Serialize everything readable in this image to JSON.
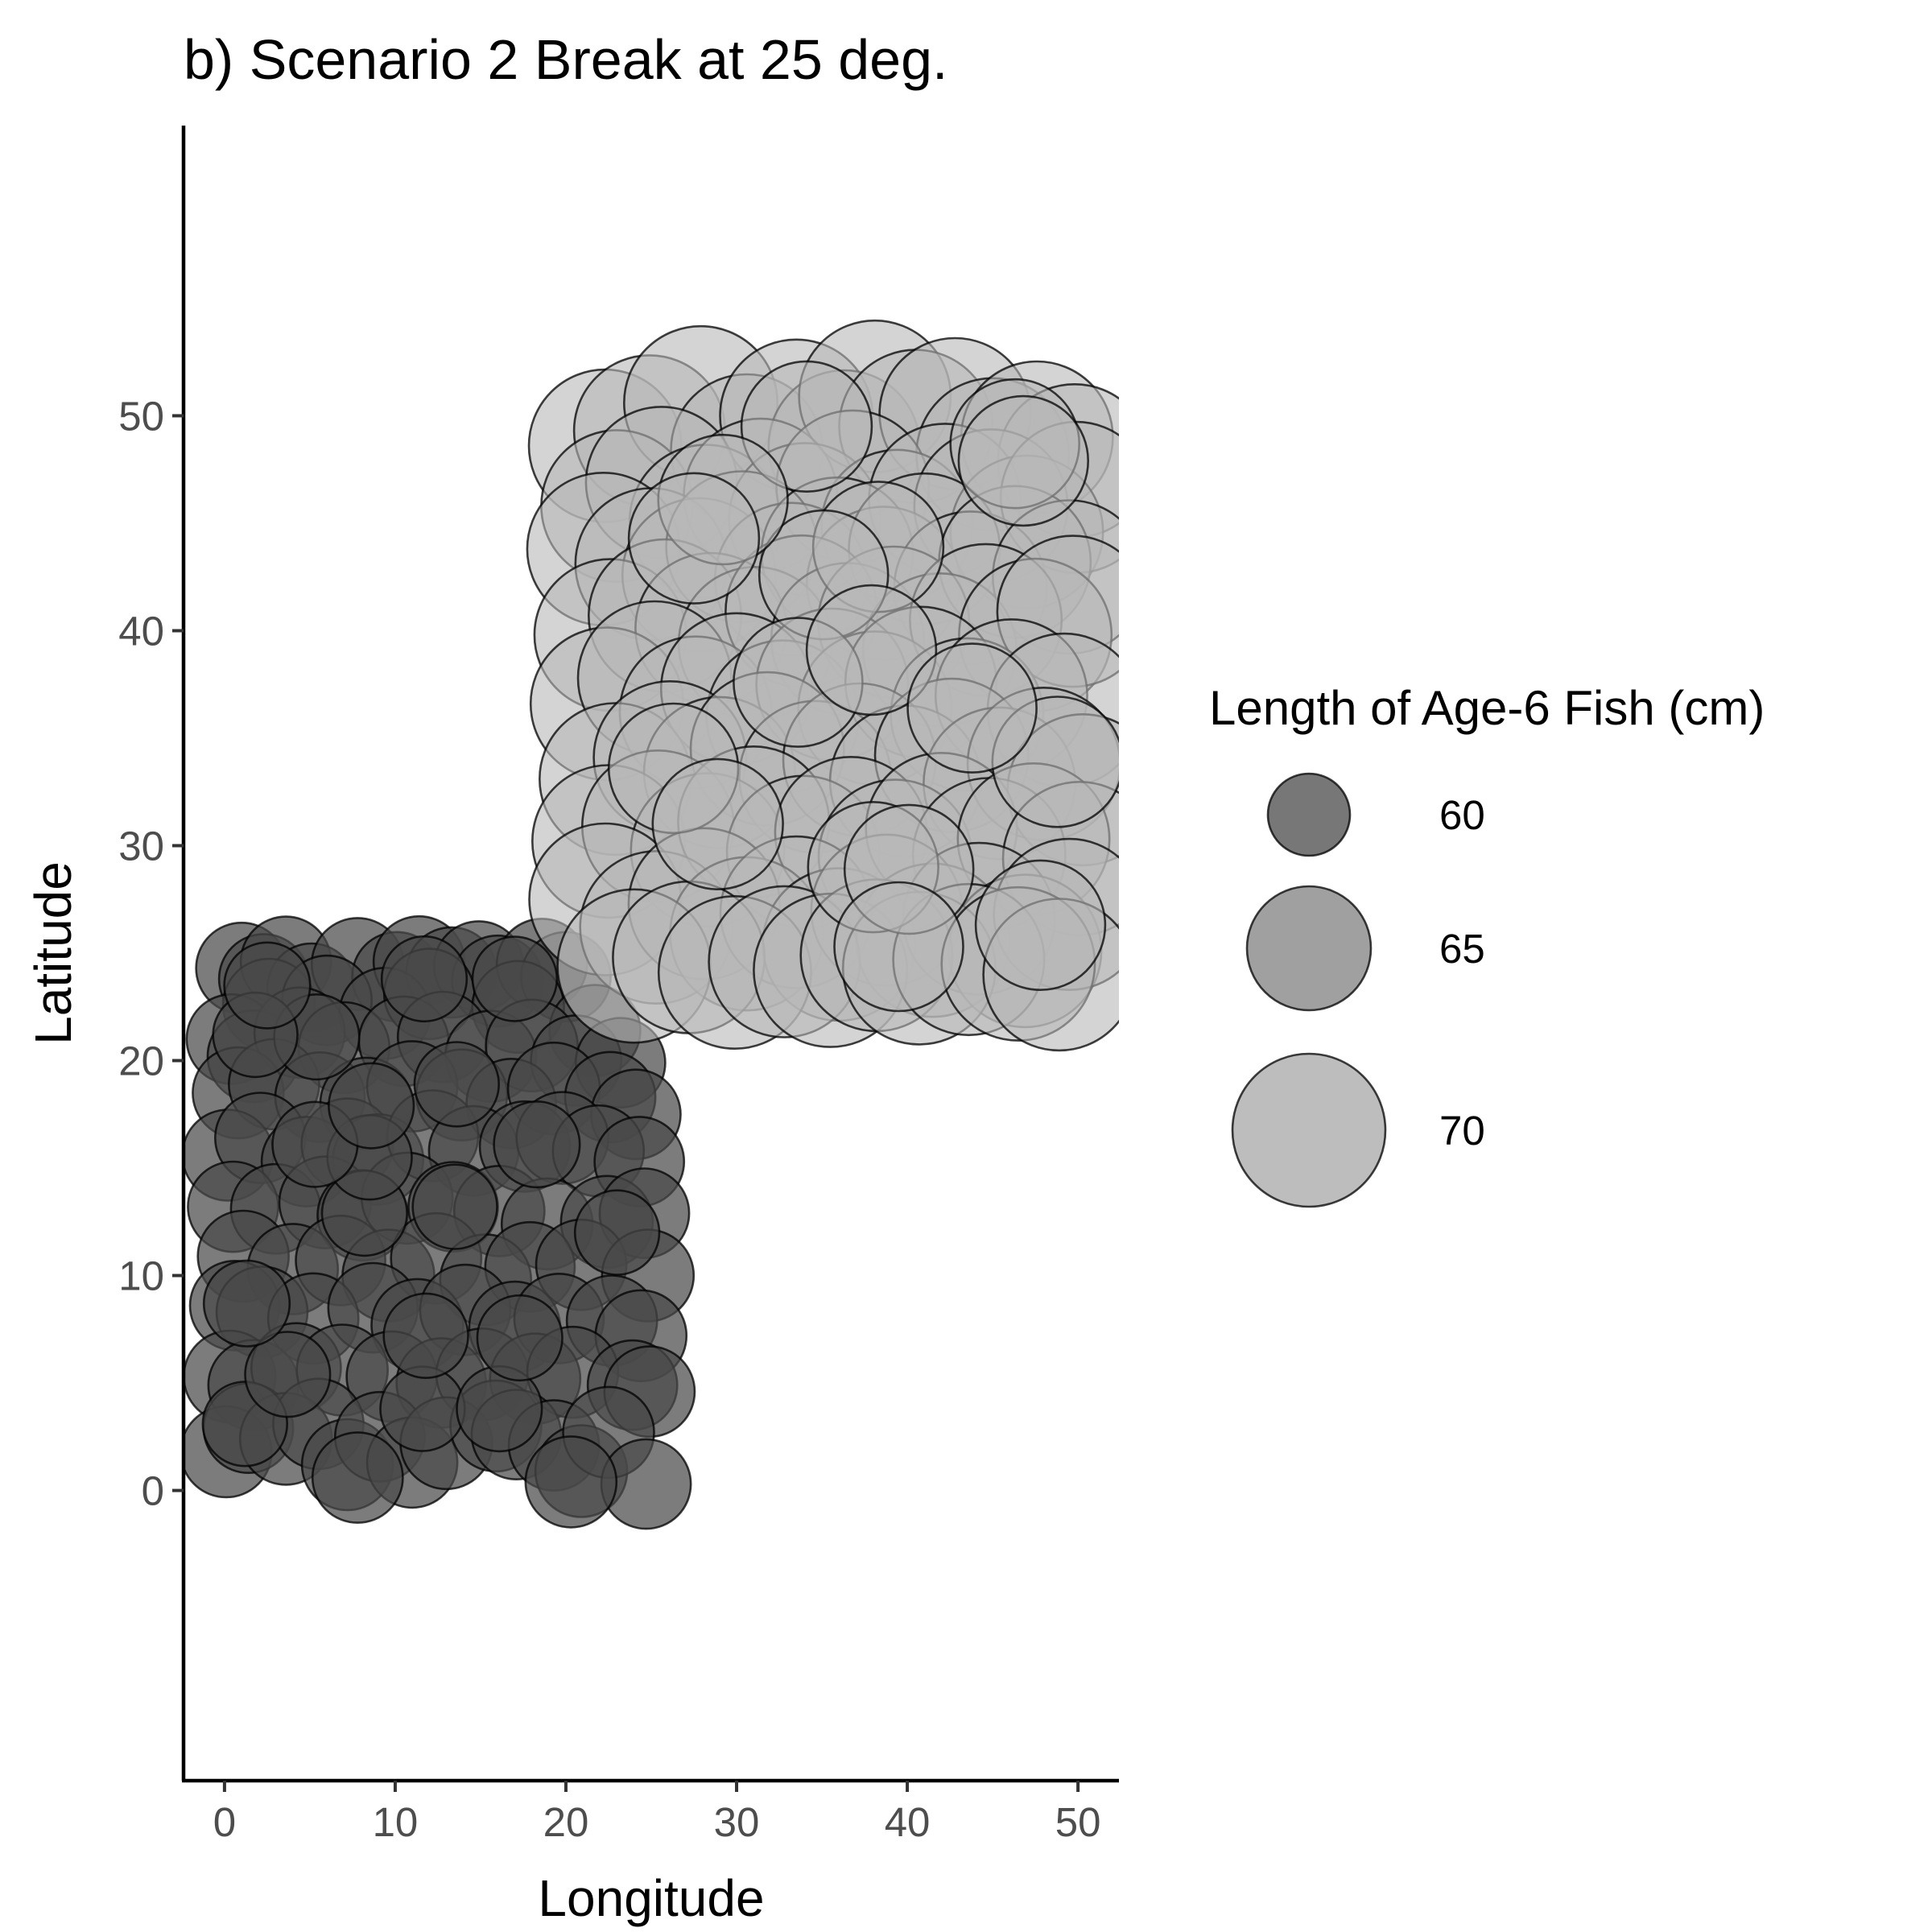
{
  "chart_data": {
    "type": "scatter",
    "title": "b) Scenario 2 Break at 25 deg.",
    "xlabel": "Longitude",
    "ylabel": "Latitude",
    "xlim": [
      -2.4,
      52.4
    ],
    "ylim": [
      -13.5,
      63.5
    ],
    "xticks": [
      0,
      10,
      20,
      30,
      40,
      50
    ],
    "yticks": [
      0,
      10,
      20,
      30,
      40,
      50
    ],
    "grid": false,
    "legend": {
      "title": "Length of Age-6 Fish (cm)",
      "placement": "right",
      "entries": [
        {
          "label": "60",
          "value": 60,
          "color": "#777777"
        },
        {
          "label": "65",
          "value": 65,
          "color": "#a0a0a0"
        },
        {
          "label": "70",
          "value": 70,
          "color": "#bdbdbd"
        }
      ]
    },
    "series": [
      {
        "region": "south-west",
        "color": "#4a4a4a",
        "points": [
          [
            1.0,
            24.3,
            61.2
          ],
          [
            2.3,
            23.8,
            61.0
          ],
          [
            3.6,
            24.6,
            61.1
          ],
          [
            5.1,
            23.4,
            60.8
          ],
          [
            7.8,
            24.5,
            61.3
          ],
          [
            10.1,
            23.9,
            61.0
          ],
          [
            11.4,
            24.6,
            61.2
          ],
          [
            13.3,
            24.1,
            61.1
          ],
          [
            14.9,
            24.4,
            61.0
          ],
          [
            16.0,
            23.7,
            61.2
          ],
          [
            18.6,
            24.5,
            61.1
          ],
          [
            20.0,
            23.9,
            61.0
          ],
          [
            2.6,
            22.6,
            61.3
          ],
          [
            6.0,
            22.8,
            61.0
          ],
          [
            9.4,
            22.2,
            61.2
          ],
          [
            12.0,
            23.1,
            61.1
          ],
          [
            17.2,
            22.5,
            61.3
          ],
          [
            21.7,
            21.4,
            61.2
          ],
          [
            0.4,
            21.0,
            61.0
          ],
          [
            1.7,
            20.2,
            61.3
          ],
          [
            4.4,
            21.3,
            61.1
          ],
          [
            7.0,
            20.6,
            61.2
          ],
          [
            10.5,
            20.9,
            61.0
          ],
          [
            12.8,
            21.1,
            61.1
          ],
          [
            15.6,
            20.2,
            61.2
          ],
          [
            18.0,
            20.7,
            61.3
          ],
          [
            20.6,
            20.0,
            61.1
          ],
          [
            23.2,
            19.9,
            61.0
          ],
          [
            0.8,
            18.5,
            61.2
          ],
          [
            2.9,
            18.9,
            61.1
          ],
          [
            5.6,
            18.3,
            61.0
          ],
          [
            8.3,
            18.0,
            61.3
          ],
          [
            11.0,
            18.8,
            61.1
          ],
          [
            13.9,
            18.4,
            61.2
          ],
          [
            16.8,
            18.0,
            61.0
          ],
          [
            19.3,
            18.7,
            61.3
          ],
          [
            22.6,
            18.3,
            61.1
          ],
          [
            24.1,
            17.5,
            61.0
          ],
          [
            0.2,
            15.6,
            61.2
          ],
          [
            2.1,
            16.4,
            61.1
          ],
          [
            4.8,
            15.3,
            61.0
          ],
          [
            7.2,
            16.1,
            61.3
          ],
          [
            9.0,
            15.4,
            61.1
          ],
          [
            12.2,
            16.5,
            61.2
          ],
          [
            14.6,
            15.8,
            61.0
          ],
          [
            17.6,
            16.0,
            61.1
          ],
          [
            19.8,
            16.4,
            61.3
          ],
          [
            21.9,
            15.8,
            61.2
          ],
          [
            24.3,
            15.3,
            61.0
          ],
          [
            0.5,
            13.2,
            61.1
          ],
          [
            3.0,
            13.1,
            61.0
          ],
          [
            5.9,
            13.4,
            61.3
          ],
          [
            8.1,
            12.8,
            61.1
          ],
          [
            10.7,
            13.6,
            61.2
          ],
          [
            13.4,
            13.2,
            61.0
          ],
          [
            16.1,
            13.0,
            61.1
          ],
          [
            18.9,
            12.4,
            61.2
          ],
          [
            22.4,
            12.5,
            61.3
          ],
          [
            24.6,
            12.9,
            61.0
          ],
          [
            1.1,
            10.9,
            61.2
          ],
          [
            4.0,
            10.3,
            61.1
          ],
          [
            6.8,
            10.7,
            61.0
          ],
          [
            9.6,
            10.0,
            61.3
          ],
          [
            12.4,
            10.8,
            61.1
          ],
          [
            15.3,
            9.8,
            61.2
          ],
          [
            17.9,
            10.4,
            61.0
          ],
          [
            20.9,
            10.5,
            61.1
          ],
          [
            24.8,
            10.0,
            61.3
          ],
          [
            0.6,
            8.6,
            61.0
          ],
          [
            2.2,
            8.3,
            61.2
          ],
          [
            5.2,
            8.0,
            61.1
          ],
          [
            8.7,
            8.5,
            61.0
          ],
          [
            11.3,
            7.7,
            61.3
          ],
          [
            14.1,
            8.4,
            61.1
          ],
          [
            17.0,
            7.6,
            61.2
          ],
          [
            19.6,
            8.0,
            61.0
          ],
          [
            22.7,
            7.9,
            61.1
          ],
          [
            24.4,
            7.2,
            61.2
          ],
          [
            0.3,
            5.3,
            61.3
          ],
          [
            1.7,
            4.9,
            61.1
          ],
          [
            4.2,
            5.7,
            61.0
          ],
          [
            6.9,
            5.6,
            61.2
          ],
          [
            9.8,
            5.3,
            61.1
          ],
          [
            12.7,
            5.0,
            61.0
          ],
          [
            15.1,
            5.4,
            61.3
          ],
          [
            18.2,
            5.2,
            61.1
          ],
          [
            20.4,
            5.5,
            61.2
          ],
          [
            23.9,
            4.9,
            61.0
          ],
          [
            24.9,
            4.6,
            61.1
          ],
          [
            0.1,
            1.8,
            61.2
          ],
          [
            1.4,
            2.9,
            61.0
          ],
          [
            3.6,
            2.4,
            61.3
          ],
          [
            5.5,
            3.1,
            61.1
          ],
          [
            7.2,
            1.2,
            61.2
          ],
          [
            9.1,
            2.5,
            61.0
          ],
          [
            11.0,
            1.3,
            61.1
          ],
          [
            13.0,
            2.2,
            61.3
          ],
          [
            15.9,
            3.0,
            61.2
          ],
          [
            17.1,
            2.6,
            61.0
          ],
          [
            19.3,
            2.1,
            61.1
          ],
          [
            20.9,
            0.9,
            61.3
          ],
          [
            22.5,
            2.7,
            61.2
          ],
          [
            24.7,
            0.3,
            61.0
          ],
          [
            7.8,
            0.6,
            61.1
          ],
          [
            20.3,
            0.4,
            61.2
          ],
          [
            1.2,
            3.1,
            60.3
          ],
          [
            3.7,
            5.4,
            60.4
          ],
          [
            11.6,
            3.8,
            60.3
          ],
          [
            16.1,
            3.8,
            60.4
          ],
          [
            11.8,
            7.2,
            60.3
          ],
          [
            17.3,
            7.1,
            60.4
          ],
          [
            1.3,
            8.7,
            60.5
          ],
          [
            23.0,
            12.0,
            60.3
          ],
          [
            8.2,
            12.9,
            60.4
          ],
          [
            8.5,
            15.5,
            60.3
          ],
          [
            5.3,
            16.1,
            60.4
          ],
          [
            18.3,
            16.1,
            60.5
          ],
          [
            13.6,
            18.9,
            60.3
          ],
          [
            5.4,
            21.1,
            60.4
          ],
          [
            1.8,
            21.2,
            60.3
          ],
          [
            11.7,
            23.8,
            60.4
          ],
          [
            17.0,
            23.8,
            60.3
          ],
          [
            2.5,
            23.5,
            60.5
          ],
          [
            8.6,
            17.9,
            60.4
          ],
          [
            13.5,
            13.2,
            60.3
          ]
        ]
      },
      {
        "region": "north-east",
        "color": "#b8b8b8",
        "points": [
          [
            22.3,
            48.6,
            69.5
          ],
          [
            24.9,
            49.3,
            69.3
          ],
          [
            27.9,
            50.6,
            69.6
          ],
          [
            30.6,
            48.4,
            69.4
          ],
          [
            33.5,
            50.0,
            69.5
          ],
          [
            36.3,
            48.6,
            69.3
          ],
          [
            38.1,
            50.9,
            69.4
          ],
          [
            40.5,
            49.5,
            69.6
          ],
          [
            42.8,
            50.1,
            69.3
          ],
          [
            45.0,
            48.2,
            69.5
          ],
          [
            47.6,
            49.0,
            69.4
          ],
          [
            49.8,
            47.9,
            69.6
          ],
          [
            23.0,
            45.8,
            69.4
          ],
          [
            25.6,
            46.9,
            69.3
          ],
          [
            28.2,
            45.1,
            69.5
          ],
          [
            31.4,
            46.3,
            69.6
          ],
          [
            34.0,
            45.2,
            69.4
          ],
          [
            36.8,
            46.7,
            69.5
          ],
          [
            39.4,
            44.9,
            69.3
          ],
          [
            42.2,
            46.1,
            69.4
          ],
          [
            44.9,
            45.8,
            69.6
          ],
          [
            47.0,
            44.6,
            69.5
          ],
          [
            49.9,
            46.2,
            69.3
          ],
          [
            22.2,
            43.8,
            69.5
          ],
          [
            25.0,
            43.1,
            69.4
          ],
          [
            27.8,
            42.6,
            69.6
          ],
          [
            30.3,
            43.9,
            69.3
          ],
          [
            33.2,
            42.4,
            69.5
          ],
          [
            35.9,
            43.6,
            69.4
          ],
          [
            38.6,
            42.2,
            69.6
          ],
          [
            41.0,
            43.8,
            69.3
          ],
          [
            43.7,
            42.0,
            69.5
          ],
          [
            46.3,
            43.2,
            69.4
          ],
          [
            49.5,
            42.5,
            69.6
          ],
          [
            22.6,
            39.8,
            69.4
          ],
          [
            25.8,
            40.7,
            69.5
          ],
          [
            28.5,
            40.1,
            69.3
          ],
          [
            31.1,
            39.4,
            69.6
          ],
          [
            33.8,
            40.9,
            69.4
          ],
          [
            36.5,
            39.6,
            69.5
          ],
          [
            39.2,
            40.4,
            69.3
          ],
          [
            41.9,
            39.1,
            69.6
          ],
          [
            44.6,
            40.5,
            69.4
          ],
          [
            47.5,
            39.8,
            69.5
          ],
          [
            49.7,
            40.9,
            69.3
          ],
          [
            22.4,
            36.6,
            69.5
          ],
          [
            25.2,
            37.8,
            69.6
          ],
          [
            27.6,
            36.2,
            69.4
          ],
          [
            30.0,
            37.3,
            69.3
          ],
          [
            32.7,
            36.0,
            69.5
          ],
          [
            35.6,
            37.5,
            69.4
          ],
          [
            38.1,
            36.4,
            69.6
          ],
          [
            40.8,
            37.6,
            69.3
          ],
          [
            43.5,
            36.1,
            69.5
          ],
          [
            46.1,
            37.0,
            69.4
          ],
          [
            49.2,
            36.3,
            69.6
          ],
          [
            22.9,
            33.1,
            69.4
          ],
          [
            26.1,
            34.1,
            69.5
          ],
          [
            29.0,
            33.4,
            69.3
          ],
          [
            31.8,
            34.5,
            69.6
          ],
          [
            34.6,
            33.2,
            69.4
          ],
          [
            37.2,
            34.0,
            69.5
          ],
          [
            39.9,
            33.0,
            69.3
          ],
          [
            42.6,
            34.2,
            69.6
          ],
          [
            45.4,
            32.9,
            69.4
          ],
          [
            48.0,
            33.8,
            69.5
          ],
          [
            50.3,
            32.6,
            69.3
          ],
          [
            22.5,
            30.2,
            69.5
          ],
          [
            25.4,
            30.9,
            69.4
          ],
          [
            28.3,
            29.8,
            69.6
          ],
          [
            31.0,
            31.1,
            69.3
          ],
          [
            33.9,
            29.7,
            69.5
          ],
          [
            36.7,
            30.6,
            69.4
          ],
          [
            39.3,
            29.5,
            69.6
          ],
          [
            42.0,
            30.8,
            69.3
          ],
          [
            44.8,
            29.6,
            69.5
          ],
          [
            47.4,
            30.3,
            69.4
          ],
          [
            50.1,
            29.4,
            69.6
          ],
          [
            22.3,
            27.5,
            69.4
          ],
          [
            25.3,
            26.2,
            69.5
          ],
          [
            28.1,
            27.3,
            69.3
          ],
          [
            30.6,
            25.9,
            69.6
          ],
          [
            33.5,
            26.9,
            69.4
          ],
          [
            36.0,
            25.4,
            69.5
          ],
          [
            38.8,
            27.0,
            69.3
          ],
          [
            41.5,
            25.6,
            69.6
          ],
          [
            44.2,
            26.6,
            69.4
          ],
          [
            46.9,
            25.1,
            69.5
          ],
          [
            49.5,
            26.8,
            69.3
          ],
          [
            24.0,
            24.4,
            69.6
          ],
          [
            27.2,
            24.8,
            69.4
          ],
          [
            29.9,
            24.1,
            69.5
          ],
          [
            32.8,
            24.6,
            69.3
          ],
          [
            35.5,
            24.2,
            69.6
          ],
          [
            38.2,
            24.9,
            69.4
          ],
          [
            40.7,
            24.3,
            69.5
          ],
          [
            43.6,
            24.7,
            69.3
          ],
          [
            46.5,
            24.5,
            69.6
          ],
          [
            48.9,
            24.0,
            69.4
          ],
          [
            34.1,
            49.5,
            66.5
          ],
          [
            46.3,
            48.7,
            66.3
          ],
          [
            46.8,
            47.9,
            66.4
          ],
          [
            38.3,
            43.9,
            66.5
          ],
          [
            35.1,
            42.6,
            66.3
          ],
          [
            29.2,
            46.1,
            66.4
          ],
          [
            27.5,
            44.3,
            66.5
          ],
          [
            33.6,
            37.6,
            66.3
          ],
          [
            37.9,
            39.1,
            66.4
          ],
          [
            48.8,
            33.9,
            66.5
          ],
          [
            43.8,
            36.4,
            66.3
          ],
          [
            26.3,
            33.6,
            66.4
          ],
          [
            38.0,
            29.0,
            66.5
          ],
          [
            40.1,
            28.9,
            66.3
          ],
          [
            47.8,
            26.3,
            66.4
          ],
          [
            28.9,
            31.0,
            66.5
          ],
          [
            39.5,
            25.3,
            66.3
          ]
        ]
      }
    ]
  }
}
